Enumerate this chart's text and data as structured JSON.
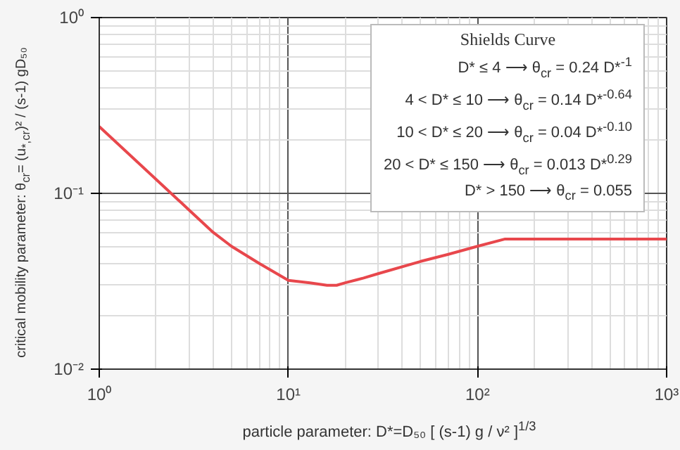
{
  "chart_data": {
    "type": "line",
    "xlabel": "particle parameter: D*=D₅₀ [ (s-1) g / ν² ]$^{1/3}$",
    "ylabel": "critical mobility parameter: θ$_{cr}$= (u$_{*,cr}$)² / (s-1) gD₅₀",
    "annotations": [
      "Shields Curve",
      "D* ≤ 4 ⟶ θ$_{cr}$ = 0.24 D*$^{-1}$",
      "4 < D* ≤ 10 ⟶ θ$_{cr}$ = 0.14 D*$^{-0.64}$",
      "10 < D* ≤ 20 ⟶ θ$_{cr}$ = 0.04 D*$^{-0.10}$",
      "20 < D* ≤ 150 ⟶ θ$_{cr}$ = 0.013 D*$^{0.29}$",
      "D* > 150 ⟶ θ$_{cr}$ = 0.055"
    ],
    "log": "xy",
    "grid": true,
    "marker": "none",
    "line_style": "solid",
    "xlim": [
      1,
      1000
    ],
    "ylim": [
      0.01,
      1
    ],
    "xticks": [
      {
        "value": 1,
        "label": "10⁰"
      },
      {
        "value": 10,
        "label": "10¹"
      },
      {
        "value": 100,
        "label": "10²"
      },
      {
        "value": 1000,
        "label": "10³"
      }
    ],
    "yticks": [
      {
        "value": 0.01,
        "label": "10⁻²"
      },
      {
        "value": 0.1,
        "label": "10⁻¹"
      },
      {
        "value": 1,
        "label": "10⁰"
      }
    ],
    "x": [
      1,
      2,
      3,
      4,
      5,
      7,
      10,
      13,
      16,
      18,
      20,
      25,
      30,
      50,
      70,
      100,
      140,
      150,
      300,
      1000
    ],
    "series": [
      {
        "color": "#e8474c",
        "values": [
          0.24,
          0.12,
          0.08,
          0.06,
          0.05,
          0.04,
          0.032,
          0.031,
          0.03,
          0.03,
          0.031,
          0.033,
          0.035,
          0.041,
          0.045,
          0.05,
          0.055,
          0.055,
          0.055,
          0.055
        ]
      }
    ]
  }
}
